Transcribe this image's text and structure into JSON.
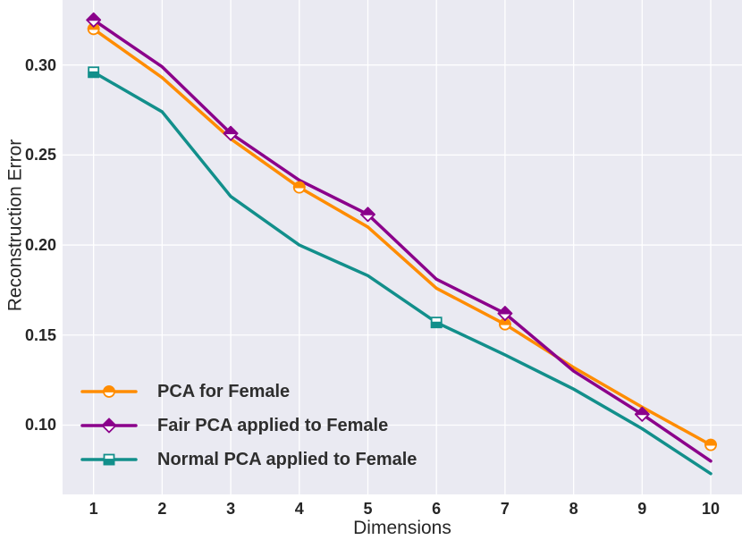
{
  "figure": {
    "background": "#ffffff",
    "plot_background": "#eaeaf2",
    "grid_color": "#ffffff",
    "tick_text_color": "#262626",
    "legend_text_color": "#2e2e2e"
  },
  "chart_data": {
    "type": "line",
    "title": "",
    "xlabel": "Dimensions",
    "ylabel": "Reconstruction Error",
    "x": [
      1,
      2,
      3,
      4,
      5,
      6,
      7,
      8,
      9,
      10
    ],
    "x_tick_labels": [
      "1",
      "2",
      "3",
      "4",
      "5",
      "6",
      "7",
      "8",
      "9",
      "10"
    ],
    "y_ticks": [
      0.3,
      0.25,
      0.2,
      0.15,
      0.1
    ],
    "y_tick_labels": [
      "0.30",
      "0.25",
      "0.20",
      "0.15",
      "0.10"
    ],
    "xlim": [
      0.548,
      10.456
    ],
    "ylim": [
      0.0615,
      0.3361
    ],
    "grid": true,
    "legend_position": "lower left",
    "series": [
      {
        "name": "PCA for Female",
        "color": "#ff8c00",
        "marker": "circle",
        "marker_fill": "top-half",
        "marker_x": [
          1,
          4,
          7,
          10
        ],
        "values": [
          0.32,
          0.293,
          0.259,
          0.232,
          0.21,
          0.176,
          0.156,
          0.132,
          0.11,
          0.089
        ]
      },
      {
        "name": "Fair PCA applied to Female",
        "color": "#8b008b",
        "marker": "diamond",
        "marker_fill": "top-half",
        "marker_x": [
          1,
          3,
          5,
          7,
          9
        ],
        "values": [
          0.325,
          0.299,
          0.262,
          0.236,
          0.217,
          0.181,
          0.162,
          0.13,
          0.106,
          0.08
        ]
      },
      {
        "name": "Normal PCA applied to Female",
        "color": "#128f8b",
        "marker": "square",
        "marker_fill": "bottom-half",
        "marker_x": [
          1,
          6
        ],
        "values": [
          0.296,
          0.274,
          0.227,
          0.2,
          0.183,
          0.157,
          0.139,
          0.12,
          0.098,
          0.073
        ]
      }
    ]
  }
}
